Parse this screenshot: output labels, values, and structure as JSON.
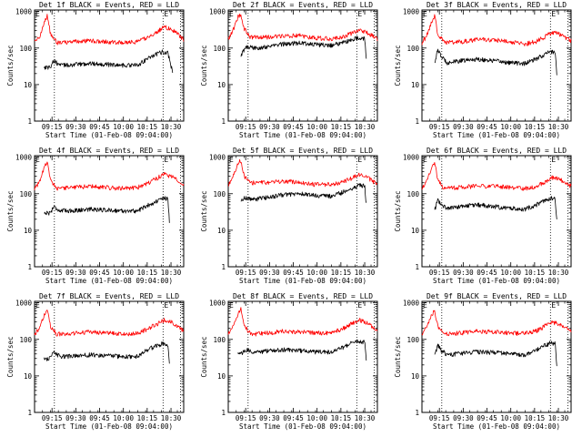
{
  "x_axis": {
    "title": "Start Time (01-Feb-08 09:04:00)",
    "tick_labels": [
      "09:15",
      "09:30",
      "09:45",
      "10:00",
      "10:15",
      "10:30"
    ],
    "tick_minutes": [
      11,
      26,
      41,
      56,
      71,
      86
    ],
    "range_minutes": [
      0,
      94
    ]
  },
  "y_axis": {
    "title": "Counts/sec",
    "scale": "log",
    "range": [
      1,
      1100
    ],
    "tick_labels": [
      "1",
      "10",
      "100",
      "1000"
    ],
    "tick_values": [
      1,
      10,
      100,
      1000
    ]
  },
  "markers": {
    "left_dotted_minute": 12.5,
    "right_dotted_minute": 81,
    "right_edge_dotted_minute": 92,
    "flag_label": "E",
    "flag_minute": 81
  },
  "colors": {
    "events": "#000000",
    "lld": "#ff0000",
    "axes": "#000000"
  },
  "chart_data": [
    {
      "type": "line",
      "title": "Det 1f BLACK = Events, RED = LLD",
      "x_unit": "minutes after 09:04:00",
      "series": [
        {
          "name": "Events",
          "color": "#000000",
          "x": [
            6,
            10,
            12,
            16,
            25,
            35,
            45,
            55,
            65,
            72,
            78,
            81,
            84,
            87
          ],
          "y": [
            30,
            30,
            45,
            34,
            35,
            38,
            36,
            34,
            34,
            55,
            72,
            80,
            75,
            22
          ]
        },
        {
          "name": "LLD",
          "color": "#ff0000",
          "x": [
            0,
            3,
            6,
            8,
            10,
            14,
            25,
            35,
            45,
            55,
            65,
            72,
            78,
            82,
            86,
            90,
            94
          ],
          "y": [
            140,
            200,
            500,
            800,
            250,
            140,
            150,
            160,
            150,
            140,
            150,
            200,
            300,
            380,
            330,
            250,
            170
          ]
        }
      ]
    },
    {
      "type": "line",
      "title": "Det 2f BLACK = Events, RED = LLD",
      "x_unit": "minutes after 09:04:00",
      "series": [
        {
          "name": "Events",
          "color": "#000000",
          "x": [
            8,
            10,
            12,
            16,
            25,
            35,
            45,
            55,
            65,
            72,
            78,
            82,
            86,
            87
          ],
          "y": [
            60,
            90,
            110,
            100,
            110,
            130,
            140,
            125,
            120,
            140,
            170,
            190,
            180,
            55
          ]
        },
        {
          "name": "LLD",
          "color": "#ff0000",
          "x": [
            0,
            3,
            6,
            8,
            10,
            14,
            25,
            35,
            45,
            55,
            65,
            72,
            78,
            82,
            86,
            90,
            94
          ],
          "y": [
            180,
            300,
            700,
            850,
            350,
            200,
            200,
            220,
            220,
            190,
            180,
            200,
            260,
            300,
            280,
            230,
            180
          ]
        }
      ]
    },
    {
      "type": "line",
      "title": "Det 3f BLACK = Events, RED = LLD",
      "x_unit": "minutes after 09:04:00",
      "series": [
        {
          "name": "Events",
          "color": "#000000",
          "x": [
            8,
            10,
            12,
            16,
            25,
            35,
            45,
            55,
            65,
            72,
            78,
            81,
            84,
            85
          ],
          "y": [
            40,
            90,
            60,
            40,
            45,
            50,
            45,
            40,
            38,
            50,
            70,
            80,
            78,
            20
          ]
        },
        {
          "name": "LLD",
          "color": "#ff0000",
          "x": [
            0,
            3,
            6,
            8,
            10,
            14,
            25,
            35,
            45,
            55,
            65,
            72,
            78,
            82,
            86,
            90,
            94
          ],
          "y": [
            140,
            220,
            500,
            750,
            250,
            140,
            150,
            170,
            170,
            150,
            130,
            150,
            210,
            270,
            250,
            200,
            160
          ]
        }
      ]
    },
    {
      "type": "line",
      "title": "Det 4f BLACK = Events, RED = LLD",
      "x_unit": "minutes after 09:04:00",
      "series": [
        {
          "name": "Events",
          "color": "#000000",
          "x": [
            6,
            10,
            12,
            16,
            25,
            35,
            45,
            55,
            65,
            72,
            78,
            81,
            84,
            85
          ],
          "y": [
            30,
            30,
            45,
            34,
            35,
            38,
            36,
            34,
            34,
            50,
            65,
            75,
            72,
            18
          ]
        },
        {
          "name": "LLD",
          "color": "#ff0000",
          "x": [
            0,
            3,
            6,
            8,
            10,
            14,
            25,
            35,
            45,
            55,
            65,
            72,
            78,
            82,
            86,
            90,
            94
          ],
          "y": [
            140,
            200,
            500,
            750,
            250,
            140,
            150,
            160,
            150,
            140,
            150,
            200,
            280,
            350,
            300,
            240,
            170
          ]
        }
      ]
    },
    {
      "type": "line",
      "title": "Det 5f BLACK = Events, RED = LLD",
      "x_unit": "minutes after 09:04:00",
      "series": [
        {
          "name": "Events",
          "color": "#000000",
          "x": [
            8,
            10,
            12,
            16,
            25,
            35,
            45,
            55,
            65,
            72,
            78,
            82,
            86,
            87
          ],
          "y": [
            60,
            80,
            75,
            70,
            80,
            95,
            100,
            90,
            85,
            110,
            140,
            170,
            165,
            50
          ]
        },
        {
          "name": "LLD",
          "color": "#ff0000",
          "x": [
            0,
            3,
            6,
            8,
            10,
            14,
            25,
            35,
            45,
            55,
            65,
            72,
            78,
            82,
            86,
            90,
            94
          ],
          "y": [
            180,
            300,
            700,
            800,
            300,
            200,
            200,
            220,
            210,
            180,
            180,
            210,
            270,
            330,
            300,
            240,
            180
          ]
        }
      ]
    },
    {
      "type": "line",
      "title": "Det 6f BLACK = Events, RED = LLD",
      "x_unit": "minutes after 09:04:00",
      "series": [
        {
          "name": "Events",
          "color": "#000000",
          "x": [
            8,
            10,
            12,
            16,
            25,
            35,
            45,
            55,
            65,
            72,
            78,
            81,
            84,
            85
          ],
          "y": [
            35,
            70,
            50,
            40,
            45,
            50,
            45,
            40,
            38,
            50,
            65,
            75,
            72,
            18
          ]
        },
        {
          "name": "LLD",
          "color": "#ff0000",
          "x": [
            0,
            3,
            6,
            8,
            10,
            14,
            25,
            35,
            45,
            55,
            65,
            72,
            78,
            82,
            86,
            90,
            94
          ],
          "y": [
            140,
            220,
            500,
            700,
            230,
            140,
            150,
            165,
            160,
            150,
            140,
            160,
            220,
            280,
            260,
            210,
            160
          ]
        }
      ]
    },
    {
      "type": "line",
      "title": "Det 7f BLACK = Events, RED = LLD",
      "x_unit": "minutes after 09:04:00",
      "series": [
        {
          "name": "Events",
          "color": "#000000",
          "x": [
            6,
            10,
            12,
            16,
            25,
            35,
            45,
            55,
            65,
            72,
            78,
            81,
            84,
            85
          ],
          "y": [
            30,
            30,
            45,
            34,
            35,
            38,
            36,
            34,
            34,
            55,
            70,
            78,
            74,
            20
          ]
        },
        {
          "name": "LLD",
          "color": "#ff0000",
          "x": [
            0,
            3,
            6,
            8,
            10,
            14,
            25,
            35,
            45,
            55,
            65,
            72,
            78,
            82,
            86,
            90,
            94
          ],
          "y": [
            140,
            200,
            450,
            700,
            230,
            140,
            150,
            160,
            150,
            140,
            150,
            200,
            280,
            340,
            300,
            240,
            170
          ]
        }
      ]
    },
    {
      "type": "line",
      "title": "Det 8f BLACK = Events, RED = LLD",
      "x_unit": "minutes after 09:04:00",
      "series": [
        {
          "name": "Events",
          "color": "#000000",
          "x": [
            6,
            10,
            12,
            16,
            25,
            35,
            45,
            55,
            65,
            72,
            78,
            82,
            86,
            87
          ],
          "y": [
            40,
            45,
            50,
            45,
            48,
            52,
            50,
            45,
            45,
            60,
            80,
            90,
            85,
            25
          ]
        },
        {
          "name": "LLD",
          "color": "#ff0000",
          "x": [
            0,
            3,
            6,
            8,
            10,
            14,
            25,
            35,
            45,
            55,
            65,
            72,
            78,
            82,
            86,
            90,
            94
          ],
          "y": [
            140,
            220,
            500,
            700,
            250,
            140,
            150,
            170,
            160,
            150,
            150,
            200,
            270,
            340,
            300,
            240,
            170
          ]
        }
      ]
    },
    {
      "type": "line",
      "title": "Det 9f BLACK = Events, RED = LLD",
      "x_unit": "minutes after 09:04:00",
      "series": [
        {
          "name": "Events",
          "color": "#000000",
          "x": [
            8,
            10,
            12,
            16,
            25,
            35,
            45,
            55,
            65,
            72,
            78,
            81,
            84,
            85
          ],
          "y": [
            35,
            70,
            50,
            38,
            42,
            46,
            44,
            40,
            38,
            50,
            70,
            80,
            76,
            18
          ]
        },
        {
          "name": "LLD",
          "color": "#ff0000",
          "x": [
            0,
            3,
            6,
            8,
            10,
            14,
            25,
            35,
            45,
            55,
            65,
            72,
            78,
            82,
            86,
            90,
            94
          ],
          "y": [
            140,
            220,
            450,
            650,
            230,
            140,
            150,
            165,
            160,
            150,
            145,
            170,
            240,
            300,
            270,
            220,
            160
          ]
        }
      ]
    }
  ]
}
